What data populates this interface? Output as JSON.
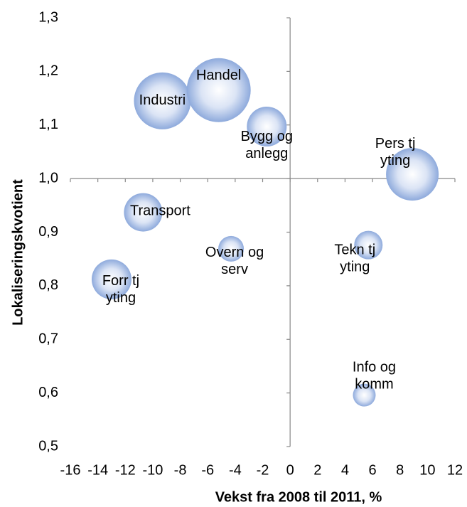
{
  "chart_data": {
    "type": "bubble",
    "xlabel": "Vekst fra 2008 til 2011, %",
    "ylabel": "Lokaliseringskvotient",
    "xlim": [
      -16,
      12
    ],
    "xticks": [
      -16,
      -14,
      -12,
      -10,
      -8,
      -6,
      -4,
      -2,
      0,
      2,
      4,
      6,
      8,
      10,
      12
    ],
    "ylim": [
      0.5,
      1.3
    ],
    "yticks": [
      {
        "value": 0.5,
        "label": "0,5"
      },
      {
        "value": 0.6,
        "label": "0,6"
      },
      {
        "value": 0.7,
        "label": "0,7"
      },
      {
        "value": 0.8,
        "label": "0,8"
      },
      {
        "value": 0.9,
        "label": "0,9"
      },
      {
        "value": 1.0,
        "label": "1,0"
      },
      {
        "value": 1.1,
        "label": "1,1"
      },
      {
        "value": 1.2,
        "label": "1,2"
      },
      {
        "value": 1.3,
        "label": "1,3"
      }
    ],
    "color": "#8eaadc",
    "labels": [
      "Industri",
      "Handel",
      "Bygg og\nanlegg",
      "Pers tj\nyting",
      "Transport",
      "Overn og\nserv",
      "Tekn tj\nyting",
      "Forr tj\nyting",
      "Info og\nkomm"
    ],
    "x": [
      -9.3,
      -5.2,
      -1.7,
      8.9,
      -10.7,
      -4.3,
      5.7,
      -13.0,
      5.4
    ],
    "values": [
      1.145,
      1.165,
      1.097,
      1.008,
      0.937,
      0.869,
      0.876,
      0.812,
      0.596
    ],
    "sizes": [
      40,
      45,
      28,
      37,
      27,
      18,
      20,
      28,
      16
    ]
  }
}
